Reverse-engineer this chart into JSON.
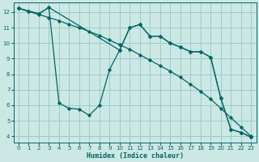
{
  "xlabel": "Humidex (Indice chaleur)",
  "bg_color": "#cce8e4",
  "line_color": "#006666",
  "grid_color": "#99cccc",
  "xlim": [
    -0.5,
    23.5
  ],
  "ylim": [
    3.6,
    12.6
  ],
  "yticks": [
    4,
    5,
    6,
    7,
    8,
    9,
    10,
    11,
    12
  ],
  "xticks": [
    0,
    1,
    2,
    3,
    4,
    5,
    6,
    7,
    8,
    9,
    10,
    11,
    12,
    13,
    14,
    15,
    16,
    17,
    18,
    19,
    20,
    21,
    22,
    23
  ],
  "line1_x": [
    0,
    1,
    2,
    3,
    4,
    5,
    6,
    7,
    8,
    9,
    10,
    11,
    12,
    13,
    14,
    15,
    16,
    17,
    18,
    19,
    20,
    21,
    22,
    23
  ],
  "line1_y": [
    12.25,
    12.05,
    11.85,
    11.65,
    11.45,
    11.2,
    11.0,
    10.75,
    10.5,
    10.2,
    9.9,
    9.6,
    9.25,
    8.9,
    8.55,
    8.2,
    7.8,
    7.35,
    6.9,
    6.4,
    5.8,
    5.2,
    4.6,
    4.0
  ],
  "line2_x": [
    0,
    1,
    2,
    3,
    4,
    5,
    6,
    7,
    8,
    9,
    10,
    11,
    12,
    13,
    14,
    15,
    16,
    17,
    18,
    19,
    20,
    21,
    22,
    23
  ],
  "line2_y": [
    12.25,
    12.05,
    11.9,
    12.3,
    6.15,
    5.8,
    5.75,
    5.35,
    6.0,
    8.3,
    9.55,
    11.0,
    11.2,
    10.45,
    10.45,
    10.0,
    9.75,
    9.45,
    9.45,
    9.1,
    6.45,
    4.45,
    4.25,
    3.95
  ],
  "line3_x": [
    0,
    2,
    3,
    10,
    11,
    12,
    13,
    14,
    15,
    16,
    17,
    18,
    19,
    20,
    21,
    22,
    23
  ],
  "line3_y": [
    12.25,
    11.9,
    12.3,
    9.55,
    11.0,
    11.2,
    10.45,
    10.45,
    10.0,
    9.75,
    9.45,
    9.45,
    9.1,
    6.45,
    4.45,
    4.25,
    3.95
  ]
}
